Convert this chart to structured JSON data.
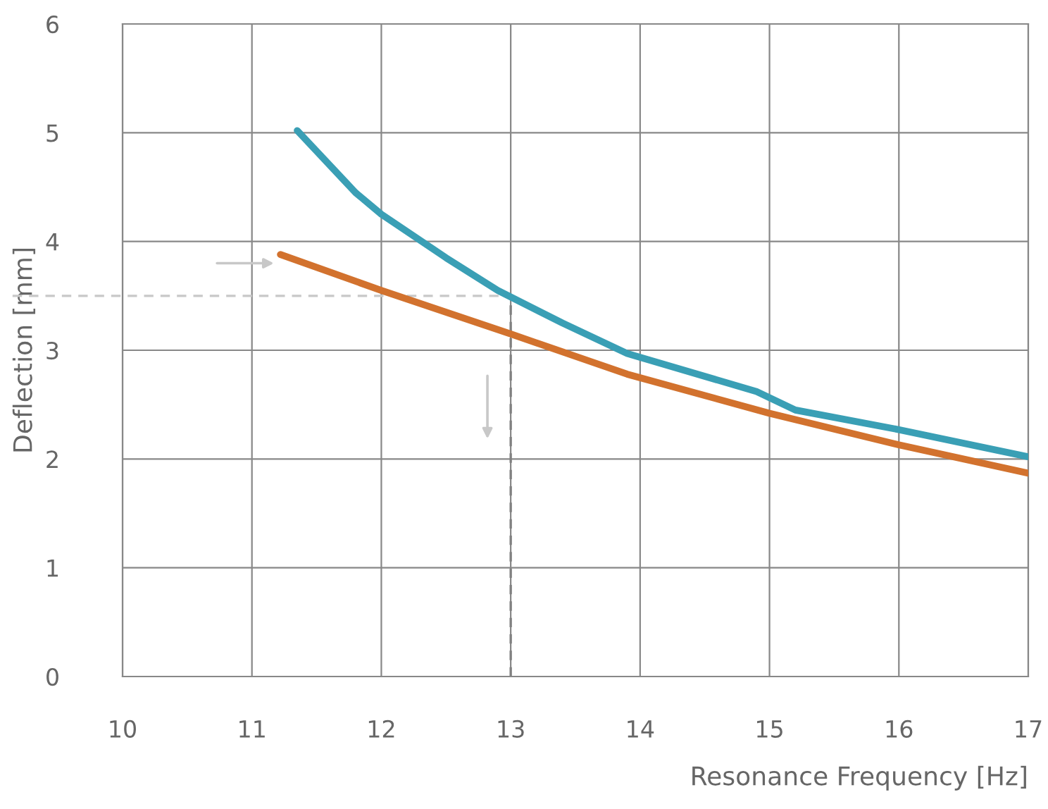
{
  "chart_data": {
    "type": "line",
    "xlabel": "Resonance Frequency [Hz]",
    "ylabel": "Deflection [mm]",
    "xlim": [
      10,
      17
    ],
    "ylim": [
      0,
      6
    ],
    "xticks": [
      10,
      11,
      12,
      13,
      14,
      15,
      16,
      17
    ],
    "yticks": [
      0,
      1,
      2,
      3,
      4,
      5,
      6
    ],
    "grid": true,
    "series": [
      {
        "color": "#3a9fb5",
        "x": [
          11.35,
          11.8,
          12,
          12.5,
          12.9,
          13.4,
          13.9,
          14.9,
          15.2,
          16,
          17
        ],
        "values": [
          5.02,
          4.45,
          4.25,
          3.85,
          3.55,
          3.25,
          2.97,
          2.62,
          2.45,
          2.27,
          2.02
        ]
      },
      {
        "color": "#d2722e",
        "x": [
          11.22,
          12,
          13,
          13.9,
          15,
          16,
          17
        ],
        "values": [
          3.88,
          3.55,
          3.15,
          2.78,
          2.42,
          2.13,
          1.87
        ]
      }
    ],
    "ref_lines": [
      {
        "axis": "y",
        "value": 3.5,
        "color": "#c8c8c8",
        "line_style": "dashed"
      },
      {
        "axis": "x",
        "value": 13,
        "color": "#808080",
        "line_style": "dashed"
      }
    ]
  }
}
